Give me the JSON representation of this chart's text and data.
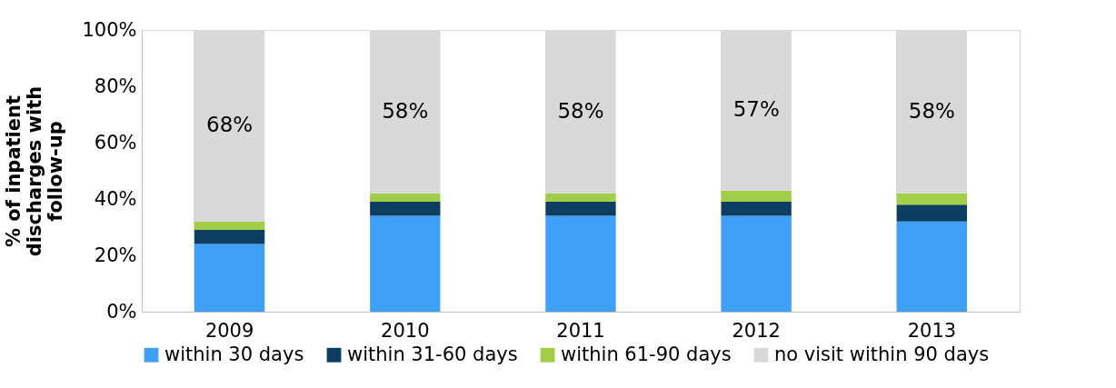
{
  "chart_data": {
    "type": "bar",
    "stacked": true,
    "ylabel": "% of inpatient discharges with follow-up",
    "categories": [
      "2009",
      "2010",
      "2011",
      "2012",
      "2013"
    ],
    "series": [
      {
        "name": "within 30 days",
        "color": "#3ea0f7",
        "values": [
          24,
          34,
          34,
          34,
          32
        ]
      },
      {
        "name": "within 31-60 days",
        "color": "#0e3d62",
        "values": [
          5,
          5,
          5,
          5,
          6
        ]
      },
      {
        "name": "within 61-90 days",
        "color": "#a2cd48",
        "values": [
          3,
          3,
          3,
          4,
          4
        ]
      },
      {
        "name": "no visit within 90 days",
        "color": "#d9d9d9",
        "values": [
          68,
          58,
          58,
          57,
          58
        ],
        "value_labels": [
          "68%",
          "58%",
          "58%",
          "57%",
          "58%"
        ]
      }
    ],
    "ylim": [
      0,
      100
    ],
    "yticks": [
      {
        "value": 0,
        "label": "0%"
      },
      {
        "value": 20,
        "label": "20%"
      },
      {
        "value": 40,
        "label": "40%"
      },
      {
        "value": 60,
        "label": "60%"
      },
      {
        "value": 80,
        "label": "80%"
      },
      {
        "value": 100,
        "label": "100%"
      }
    ],
    "grid": "x",
    "legend": "bottom"
  }
}
